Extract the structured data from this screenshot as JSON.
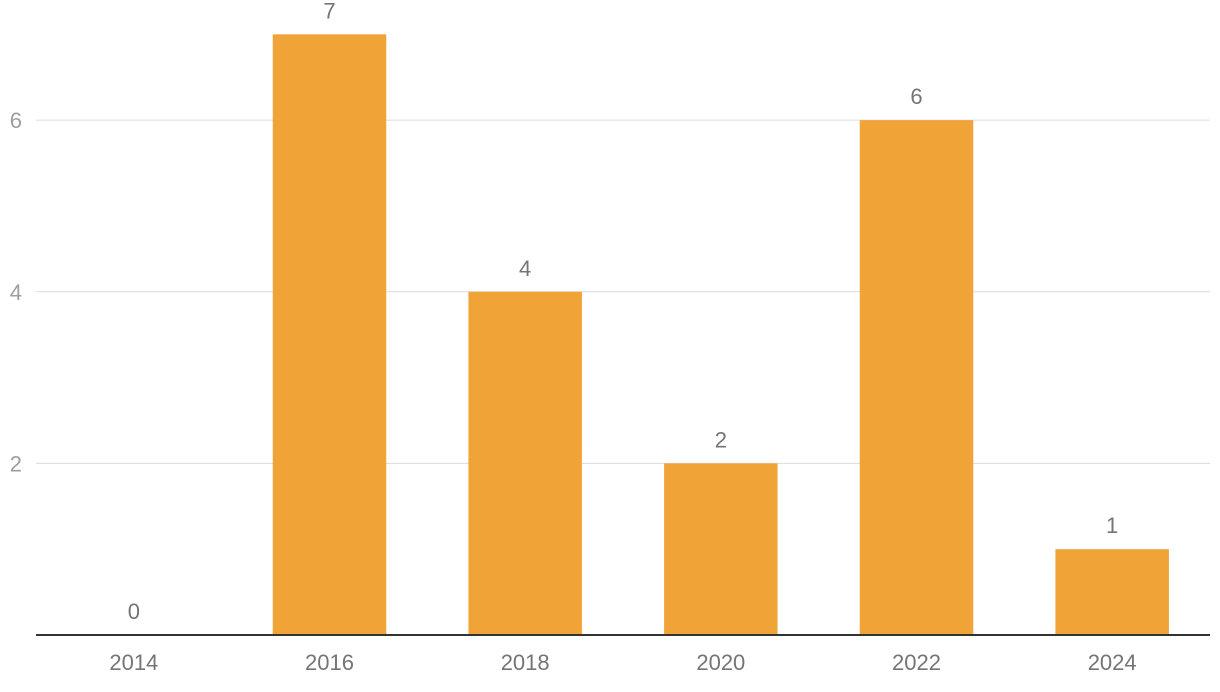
{
  "chart_data": {
    "type": "bar",
    "categories": [
      "2014",
      "2016",
      "2018",
      "2020",
      "2022",
      "2024"
    ],
    "values": [
      0,
      7,
      4,
      2,
      6,
      1
    ],
    "title": "",
    "xlabel": "",
    "ylabel": "",
    "ylim": [
      0,
      7.4
    ],
    "yticks": [
      "2",
      "4",
      "6"
    ],
    "data_labels": [
      "0",
      "7",
      "4",
      "2",
      "6",
      "1"
    ],
    "grid": true,
    "legend": "none",
    "colors": {
      "bar": "#f0a337",
      "grid": "#dcdcdc",
      "axis": "#333333",
      "tick_text": "#9e9e9e",
      "label_text": "#757575"
    }
  }
}
